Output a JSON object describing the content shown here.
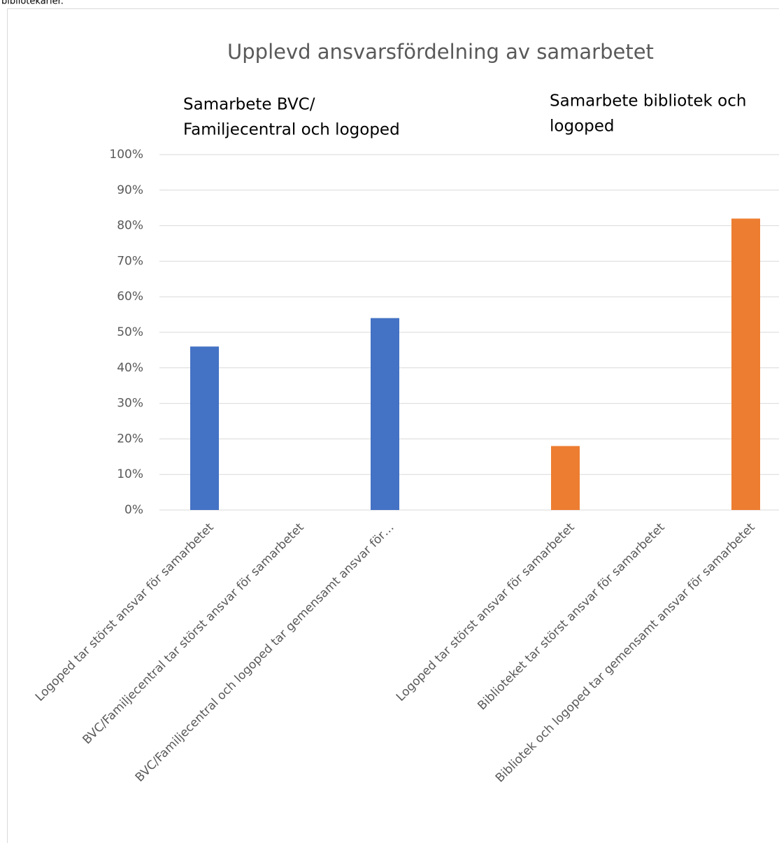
{
  "caption_fragment": "bibliotekarier.",
  "chart_data": {
    "type": "bar",
    "title": "Upplevd  ansvarsfördelning av samarbetet",
    "annotations": [
      {
        "lines": [
          "Samarbete BVC/",
          "Familjecentral och logoped"
        ]
      },
      {
        "lines": [
          "Samarbete bibliotek och",
          "logoped"
        ]
      }
    ],
    "categories": [
      "Logoped tar störst ansvar för samarbetet",
      "BVC/Familjecentral tar störst ansvar för samarbetet",
      "BVC/Familjecentral och logoped tar gemensamt ansvar för…",
      null,
      "Logoped tar störst ansvar för samarbetet",
      "Biblioteket tar störst ansvar för samarbetet",
      "Bibliotek och logoped tar gemensamt ansvar för samarbetet"
    ],
    "series": [
      {
        "color": "#4472c4",
        "values": [
          46,
          0,
          54,
          null,
          null,
          null,
          null
        ]
      },
      {
        "color": "#ed7d31",
        "values": [
          null,
          null,
          null,
          null,
          18,
          0,
          82
        ]
      }
    ],
    "ylim": [
      0,
      100
    ],
    "yticks": [
      {
        "value": 0,
        "label": "0%"
      },
      {
        "value": 10,
        "label": "10%"
      },
      {
        "value": 20,
        "label": "20%"
      },
      {
        "value": 30,
        "label": "30%"
      },
      {
        "value": 40,
        "label": "40%"
      },
      {
        "value": 50,
        "label": "50%"
      },
      {
        "value": 60,
        "label": "60%"
      },
      {
        "value": 70,
        "label": "70%"
      },
      {
        "value": 80,
        "label": "80%"
      },
      {
        "value": 90,
        "label": "90%"
      },
      {
        "value": 100,
        "label": "100%"
      }
    ],
    "grid": true
  }
}
